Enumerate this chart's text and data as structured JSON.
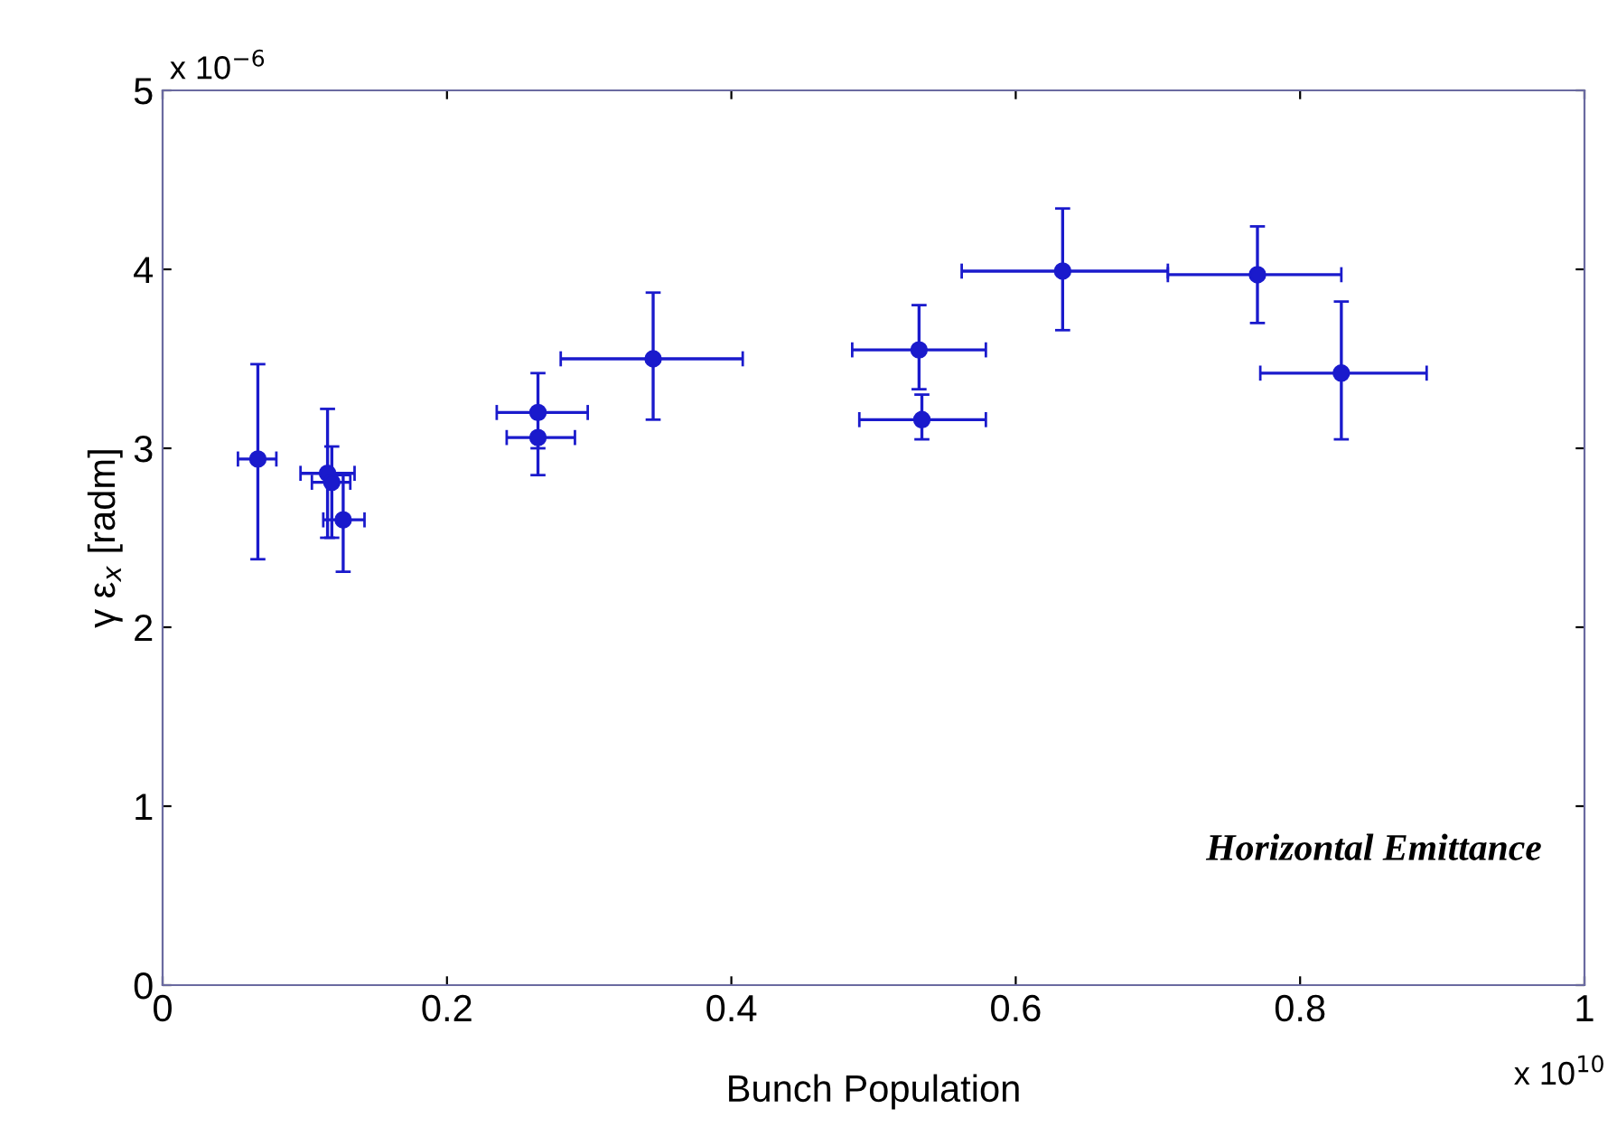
{
  "chart_data": {
    "type": "scatter",
    "xlabel": "Bunch Population",
    "ylabel": "γ ε$_{x}$ [radm]",
    "annotations": [
      "x 10$^{−6}$",
      "x 10$^{10}$",
      "Horizontal Emittance"
    ],
    "x": [
      0.067,
      0.116,
      0.119,
      0.127,
      0.264,
      0.264,
      0.345,
      0.532,
      0.534,
      0.633,
      0.77,
      0.829
    ],
    "series": [
      {
        "color": "#1a1acc",
        "values": [
          2.94,
          2.86,
          2.81,
          2.6,
          3.2,
          3.06,
          3.5,
          3.55,
          3.16,
          3.99,
          3.97,
          3.42
        ],
        "errors": [
          [
            2.38,
            3.47
          ],
          [
            2.5,
            3.22
          ],
          [
            2.5,
            3.01
          ],
          [
            2.31,
            2.85
          ],
          [
            3.0,
            3.42
          ],
          [
            2.85,
            3.06
          ],
          [
            3.16,
            3.87
          ],
          [
            3.33,
            3.8
          ],
          [
            3.05,
            3.3
          ],
          [
            3.66,
            4.34
          ],
          [
            3.7,
            4.24
          ],
          [
            3.05,
            3.82
          ]
        ],
        "xerrors": [
          [
            0.053,
            0.08
          ],
          [
            0.097,
            0.135
          ],
          [
            0.105,
            0.132
          ],
          [
            0.113,
            0.142
          ],
          [
            0.235,
            0.299
          ],
          [
            0.242,
            0.29
          ],
          [
            0.28,
            0.408
          ],
          [
            0.485,
            0.579
          ],
          [
            0.49,
            0.579
          ],
          [
            0.562,
            0.707
          ],
          [
            0.707,
            0.829
          ],
          [
            0.772,
            0.889
          ]
        ]
      }
    ],
    "xlim": [
      0,
      1
    ],
    "ylim": [
      0,
      5
    ],
    "xticks": [
      0,
      0.2,
      0.4,
      0.6,
      0.8,
      1
    ],
    "yticks": [
      0,
      1,
      2,
      3,
      4,
      5
    ],
    "marker": "circle",
    "grid": false,
    "legend": false
  }
}
